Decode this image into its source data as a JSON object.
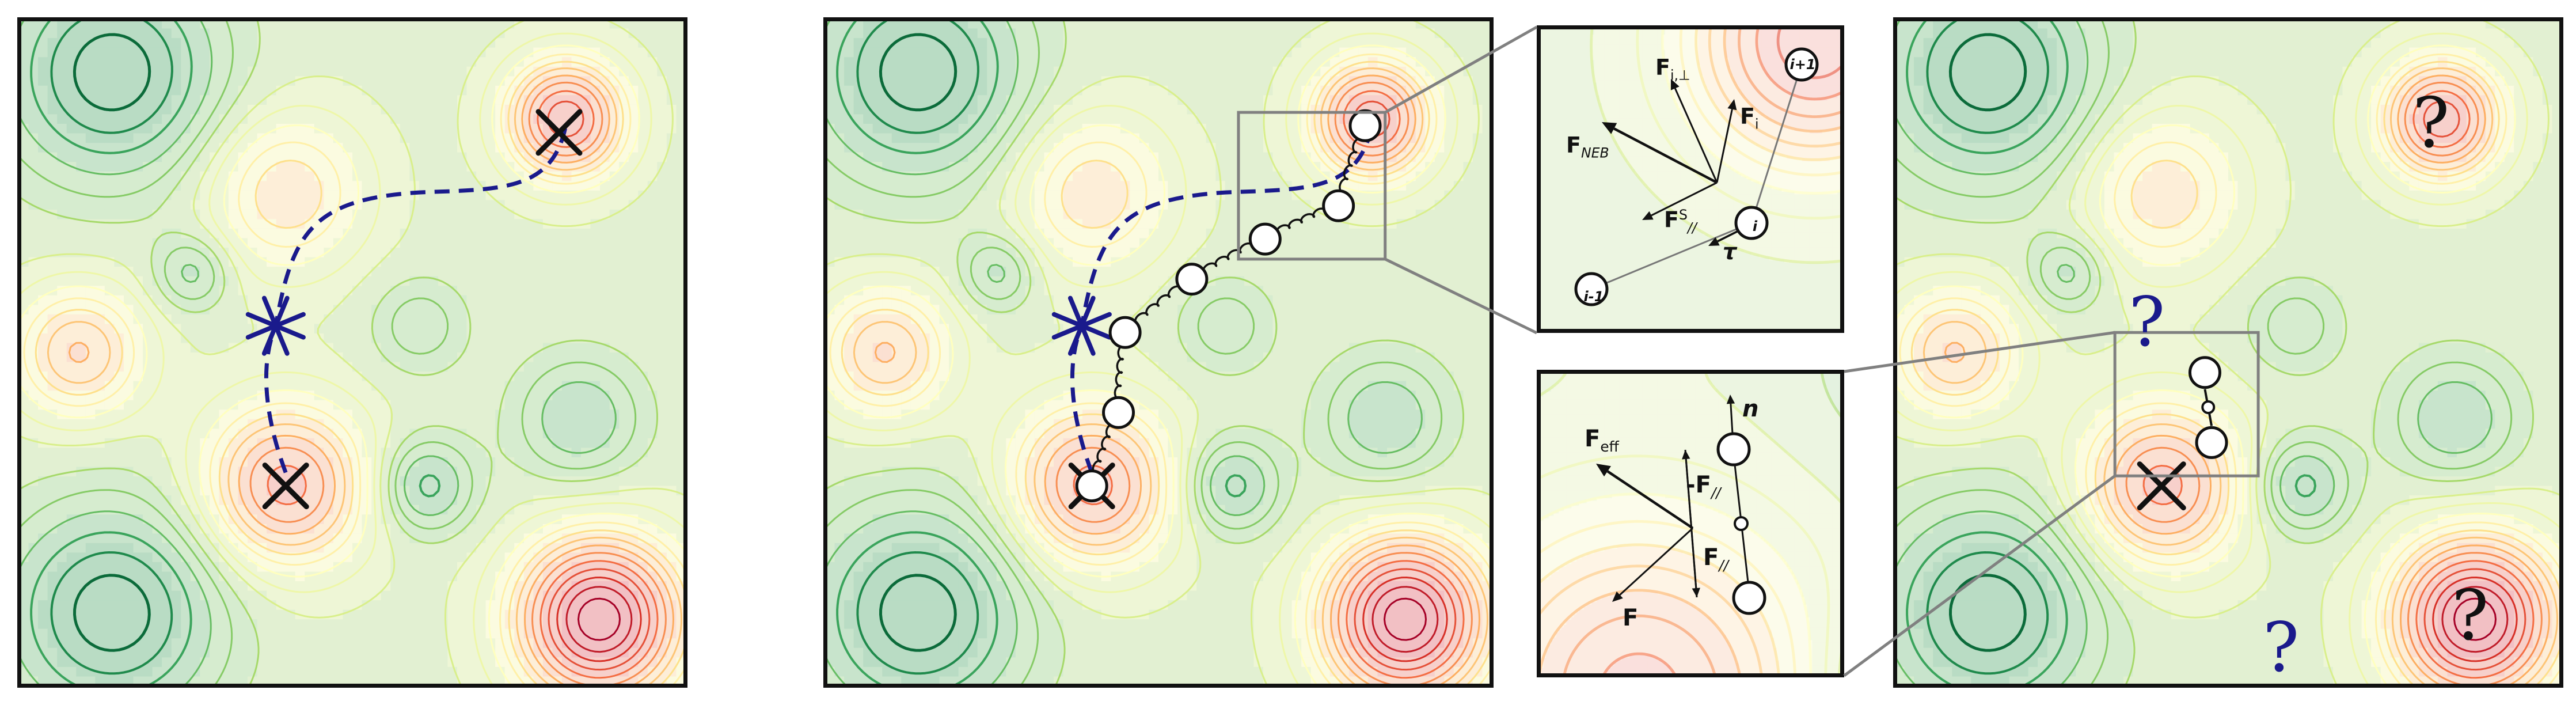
{
  "colors": {
    "dashed_path": "#1a1a8c",
    "saddle_marker": "#1a1a8c",
    "minimum_marker": "#111111",
    "question_mark_blue": "#1a1a8c",
    "question_mark_dark": "#111111",
    "zoom_box": "#808080",
    "springs": "#111111",
    "frame": "#111111"
  },
  "icons": {
    "saddle": "asterisk-star-icon",
    "minimum": "x-cross-icon",
    "image": "circle-node-icon"
  },
  "upper_inset": {
    "f_perp_main": "F",
    "f_perp_sub": "i,⊥",
    "f_i_main": "F",
    "f_i_sub": "i",
    "f_neb_main": "F",
    "f_neb_sub": "NEB",
    "f_spring_main": "F",
    "f_spring_sup": "S",
    "f_spring_sub": "//",
    "tau": "τ",
    "image_prev": "i-1",
    "image_curr": "i",
    "image_next": "i+1"
  },
  "lower_inset": {
    "f_eff_main": "F",
    "f_eff_sub": "eff",
    "neg_f_par_main": "-F",
    "neg_f_par_sub": "//",
    "f_par_main": "F",
    "f_par_sub": "//",
    "f": "F",
    "n": "n"
  },
  "question_marks": {
    "dark": "?",
    "blue": "?"
  }
}
